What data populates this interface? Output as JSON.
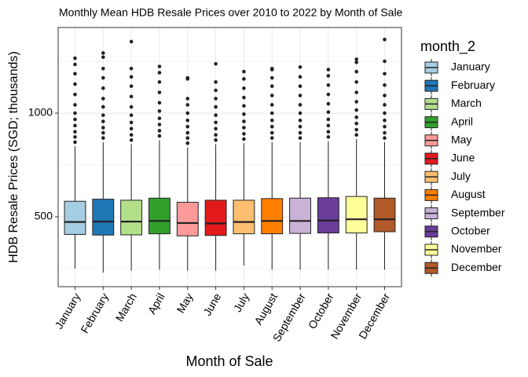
{
  "chart_data": {
    "type": "boxplot",
    "title": "Monthly Mean HDB Resale Prices over 2010 to 2022 by Month of Sale",
    "x_label": "Month of Sale",
    "y_label": "HDB Resale Prices (SGD; thousands)",
    "categories": [
      "January",
      "February",
      "March",
      "April",
      "May",
      "June",
      "July",
      "August",
      "September",
      "October",
      "November",
      "December"
    ],
    "ylim": [
      163,
      1413
    ],
    "yticks": [
      500,
      1000
    ],
    "y_minor_grid": [
      250,
      750,
      1250
    ],
    "grid": true,
    "legend": {
      "title": "month_2",
      "position": "right"
    },
    "series": [
      {
        "name": "January",
        "color": "#a6cee3",
        "whisker_low": 250,
        "q1": 415,
        "median": 475,
        "q3": 575,
        "whisker_high": 840,
        "outliers": [
          860,
          885,
          910,
          940,
          970,
          1000,
          1040,
          1090,
          1140,
          1190,
          1235,
          1265
        ]
      },
      {
        "name": "February",
        "color": "#1f78b4",
        "whisker_low": 231,
        "q1": 412,
        "median": 477,
        "q3": 585,
        "whisker_high": 860,
        "outliers": [
          880,
          905,
          930,
          960,
          990,
          1030,
          1070,
          1120,
          1170,
          1215,
          1270,
          1290
        ]
      },
      {
        "name": "March",
        "color": "#b2df8a",
        "whisker_low": 240,
        "q1": 413,
        "median": 477,
        "q3": 580,
        "whisker_high": 850,
        "outliers": [
          870,
          895,
          925,
          955,
          990,
          1030,
          1080,
          1130,
          1175,
          1215,
          1345
        ]
      },
      {
        "name": "April",
        "color": "#33a02c",
        "whisker_low": 245,
        "q1": 418,
        "median": 480,
        "q3": 590,
        "whisker_high": 870,
        "outliers": [
          890,
          915,
          945,
          975,
          1010,
          1050,
          1100,
          1150,
          1195,
          1225
        ]
      },
      {
        "name": "May",
        "color": "#fb9a99",
        "whisker_low": 240,
        "q1": 408,
        "median": 470,
        "q3": 570,
        "whisker_high": 835,
        "outliers": [
          855,
          880,
          905,
          935,
          965,
          1000,
          1040,
          1070,
          1165,
          1170
        ]
      },
      {
        "name": "June",
        "color": "#e31a1c",
        "whisker_low": 240,
        "q1": 410,
        "median": 468,
        "q3": 580,
        "whisker_high": 850,
        "outliers": [
          870,
          895,
          925,
          955,
          990,
          1030,
          1070,
          1110,
          1150,
          1238
        ]
      },
      {
        "name": "July",
        "color": "#fdbf6f",
        "whisker_low": 265,
        "q1": 418,
        "median": 475,
        "q3": 580,
        "whisker_high": 855,
        "outliers": [
          875,
          900,
          930,
          960,
          995,
          1035,
          1075,
          1120,
          1165,
          1200
        ]
      },
      {
        "name": "August",
        "color": "#ff7f00",
        "whisker_low": 245,
        "q1": 418,
        "median": 480,
        "q3": 588,
        "whisker_high": 860,
        "outliers": [
          880,
          905,
          935,
          965,
          1000,
          1040,
          1085,
          1130,
          1170,
          1210,
          1215
        ]
      },
      {
        "name": "September",
        "color": "#cab2d6",
        "whisker_low": 245,
        "q1": 420,
        "median": 480,
        "q3": 590,
        "whisker_high": 860,
        "outliers": [
          880,
          905,
          935,
          965,
          1000,
          1040,
          1085,
          1130,
          1175,
          1222
        ]
      },
      {
        "name": "October",
        "color": "#6a3d9a",
        "whisker_low": 245,
        "q1": 422,
        "median": 482,
        "q3": 592,
        "whisker_high": 865,
        "outliers": [
          885,
          910,
          940,
          970,
          1005,
          1045,
          1090,
          1135,
          1180,
          1210
        ]
      },
      {
        "name": "November",
        "color": "#ffff99",
        "whisker_low": 245,
        "q1": 422,
        "median": 488,
        "q3": 598,
        "whisker_high": 875,
        "outliers": [
          895,
          920,
          950,
          980,
          1015,
          1055,
          1100,
          1150,
          1200,
          1245,
          1260
        ]
      },
      {
        "name": "December",
        "color": "#b15928",
        "whisker_low": 245,
        "q1": 428,
        "median": 488,
        "q3": 590,
        "whisker_high": 860,
        "outliers": [
          880,
          905,
          935,
          965,
          1000,
          1040,
          1085,
          1135,
          1190,
          1250,
          1355
        ]
      }
    ]
  }
}
